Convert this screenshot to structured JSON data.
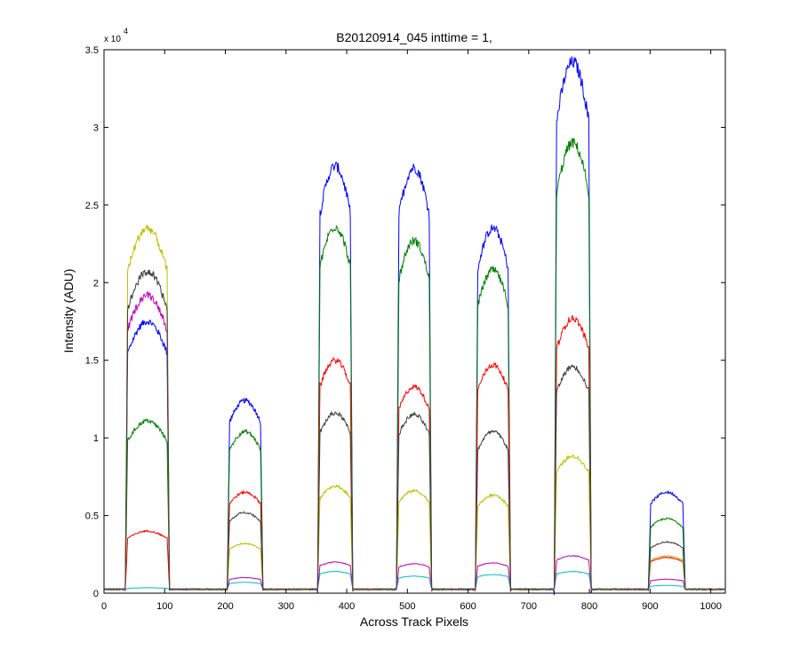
{
  "chart_data": {
    "type": "line",
    "title": "B20120914_045 inttime = 1,",
    "xlabel": "Across Track Pixels",
    "ylabel": "Intensity (ADU)",
    "y_exponent_label": "x 10",
    "y_exponent_power": "4",
    "xlim": [
      0,
      1024
    ],
    "ylim": [
      0,
      35000
    ],
    "x_ticks": [
      0,
      100,
      200,
      300,
      400,
      500,
      600,
      700,
      800,
      900,
      1000
    ],
    "y_ticks": [
      0,
      5000,
      10000,
      15000,
      20000,
      25000,
      30000,
      35000
    ],
    "y_tick_labels": [
      "0",
      "0.5",
      "1",
      "1.5",
      "2",
      "2.5",
      "3",
      "3.5"
    ],
    "grid": false,
    "legend": "none",
    "baseline": 250,
    "blocks": [
      {
        "x0": 35,
        "x1": 108
      },
      {
        "x0": 203,
        "x1": 262
      },
      {
        "x0": 352,
        "x1": 410
      },
      {
        "x0": 482,
        "x1": 540
      },
      {
        "x0": 612,
        "x1": 670
      },
      {
        "x0": 742,
        "x1": 803
      },
      {
        "x0": 897,
        "x1": 958
      }
    ],
    "series": [
      {
        "color": "#0000ff",
        "values": [
          17500,
          12400,
          27500,
          27400,
          23500,
          34200,
          6500
        ]
      },
      {
        "color": "#008000",
        "values": [
          11100,
          10400,
          23600,
          22700,
          20800,
          29000,
          4800
        ]
      },
      {
        "color": "#ff0000",
        "values": [
          4000,
          6500,
          15000,
          13300,
          14700,
          17700,
          2300
        ]
      },
      {
        "color": "#00bfbf",
        "values": [
          350,
          700,
          1400,
          1100,
          1200,
          1400,
          500
        ]
      },
      {
        "color": "#bf00bf",
        "values": [
          19200,
          1000,
          2000,
          1900,
          1950,
          2400,
          900
        ]
      },
      {
        "color": "#bfbf00",
        "values": [
          23500,
          3200,
          6900,
          6600,
          6300,
          8800,
          2400
        ]
      },
      {
        "color": "#404040",
        "values": [
          20700,
          5200,
          11600,
          11500,
          10400,
          14600,
          3300
        ]
      }
    ]
  }
}
